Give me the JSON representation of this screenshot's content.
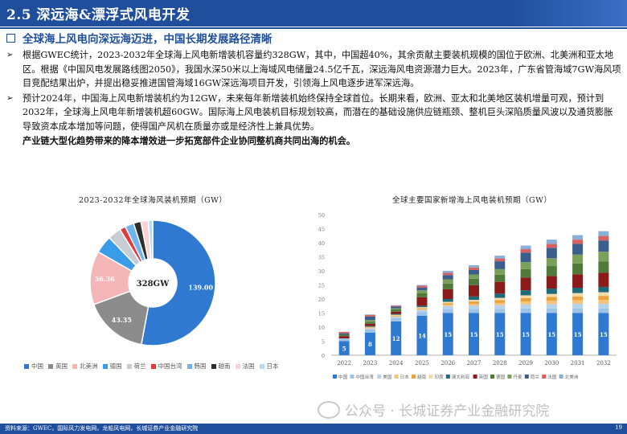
{
  "header": {
    "title": "2.5 深远海&漂浮式风电开发"
  },
  "subheading": "全球海上风电向深远海迈进，中国长期发展路径清晰",
  "bullets": [
    "根据GWEC统计，2023-2032年全球海上风电新增装机容量约328GW，其中，中国超40%，其余贡献主要装机规模的国位于欧洲、北美洲和亚太地区。根据《中国风电发展路线图2050》，我国水深50米以上海域风电储量24.5亿千瓦，深远海风电资源潜力巨大。2023年，广东省管海域7GW海风项目竞配结果出炉，并提出稳妥推进国管海域16GW深远海项目开发，引领海上风电逐步进军深远海。",
    "预计2024年，中国海上风电新增装机约为12GW，未来每年新增装机始终保持全球首位。长期来看，欧洲、亚太和北美地区装机增量可观，预计到2032年，全球海上风电年新增装机超60GW。国际海上风电装机目标规划较高，而潜在的基础设施供应链瓶颈、整机巨头深陷质量风波以及通货膨胀导致资本成本增加等问题，使得国产风机在质量亦或是经济性上兼具优势。"
  ],
  "bold_line": "产业链大型化趋势带来的降本增效进一步拓宽部件企业协同整机商共同出海的机会。",
  "chart_data": [
    {
      "type": "pie",
      "title": "2023-2032年全球海风装机预期（GW）",
      "center_label": "328GW",
      "categories": [
        "中国",
        "英国",
        "北美洲",
        "德国",
        "荷兰",
        "中国台湾",
        "韩国",
        "越南",
        "法国",
        "日本"
      ],
      "values": [
        139.0,
        43.35,
        36.36,
        12,
        9,
        4,
        6,
        5,
        5,
        3
      ],
      "value_labels": [
        "139.00",
        "43.35",
        "36.36",
        "",
        "",
        "",
        "",
        "",
        "",
        ""
      ],
      "colors": [
        "#2f7ad0",
        "#8c8c8c",
        "#f4b6b6",
        "#3a9be8",
        "#c8ccd4",
        "#e33b3b",
        "#6fb6f0",
        "#2e2e2e",
        "#fbd3d3",
        "#b7dcf7"
      ]
    },
    {
      "type": "bar",
      "stacked": true,
      "title": "全球主要国家新增海上风电装机预期（GW）",
      "categories": [
        "2022",
        "2023",
        "2024",
        "2025",
        "2026",
        "2027",
        "2028",
        "2029",
        "2030",
        "2031",
        "2032"
      ],
      "china_labels": [
        "5",
        "8",
        "12",
        "14",
        "15",
        "15",
        "15",
        "15",
        "15",
        "15",
        "15"
      ],
      "ylim": [
        0,
        50
      ],
      "yticks": [
        0,
        5,
        10,
        15,
        20,
        25,
        30,
        35,
        40,
        45,
        50
      ],
      "series": [
        {
          "name": "中国",
          "color": "#2f7ad0",
          "values": [
            5,
            8,
            12,
            14,
            15,
            15,
            15,
            15,
            15,
            15,
            15
          ]
        },
        {
          "name": "中国台湾",
          "color": "#9dc3e6",
          "values": [
            1,
            1.2,
            1.2,
            1.3,
            1.5,
            1.5,
            1.5,
            1.6,
            1.6,
            1.6,
            1.6
          ]
        },
        {
          "name": "美国",
          "color": "#b7d3ec",
          "values": [
            0,
            0.3,
            0.5,
            0.8,
            1,
            1.2,
            1.3,
            1.5,
            1.6,
            1.7,
            1.7
          ]
        },
        {
          "name": "日本",
          "color": "#f4c27a",
          "values": [
            0,
            0.2,
            0.2,
            0.3,
            0.5,
            0.6,
            0.8,
            1,
            1.2,
            1.3,
            1.4
          ]
        },
        {
          "name": "越南",
          "color": "#e9a23b",
          "values": [
            0,
            0.2,
            0.2,
            0.3,
            0.5,
            0.8,
            1,
            1.2,
            1.3,
            1.3,
            1.4
          ]
        },
        {
          "name": "印度",
          "color": "#f5d9a6",
          "values": [
            0,
            0.2,
            0.3,
            0.4,
            0.5,
            0.6,
            0.8,
            1,
            1.1,
            1.2,
            1.3
          ]
        },
        {
          "name": "澳大利亚",
          "color": "#1d6b79",
          "values": [
            0,
            0.3,
            0.3,
            0.5,
            1,
            1.2,
            1.5,
            1.8,
            1.9,
            1.9,
            1.9
          ]
        },
        {
          "name": "英国",
          "color": "#8b1a1a",
          "values": [
            0.8,
            0.8,
            0.8,
            3,
            3.5,
            4,
            4.2,
            4.5,
            4.5,
            4.8,
            5
          ]
        },
        {
          "name": "德国",
          "color": "#4f7a3a",
          "values": [
            0.5,
            0.7,
            0.8,
            1.5,
            2,
            2.3,
            2.5,
            3,
            3.5,
            3.8,
            4
          ]
        },
        {
          "name": "丹麦",
          "color": "#7aa05a",
          "values": [
            0,
            0.6,
            0.4,
            1,
            1.5,
            1.5,
            2,
            2.5,
            2.8,
            3.2,
            3.5
          ]
        },
        {
          "name": "荷兰",
          "color": "#3b5e8c",
          "values": [
            0.5,
            1.3,
            0.6,
            1,
            1.5,
            1.6,
            2.8,
            3.4,
            3.7,
            3.8,
            4
          ]
        },
        {
          "name": "法国",
          "color": "#d65f5f",
          "values": [
            0.5,
            0.5,
            0.3,
            0.6,
            0.8,
            0.9,
            1,
            1.2,
            1.4,
            1.5,
            1.6
          ]
        },
        {
          "name": "北美洲",
          "color": "#8aaed8",
          "values": [
            0,
            0.2,
            0.2,
            0.3,
            0.7,
            0.8,
            1,
            1.3,
            1.5,
            1.6,
            1.7
          ]
        }
      ]
    }
  ],
  "watermark": "公众号 · 长城证券产业金融研究院",
  "footer": {
    "source": "资料来源：GWEC，国际风力发电网，龙船风电网，长城证券产业金融研究院",
    "page": "19"
  }
}
